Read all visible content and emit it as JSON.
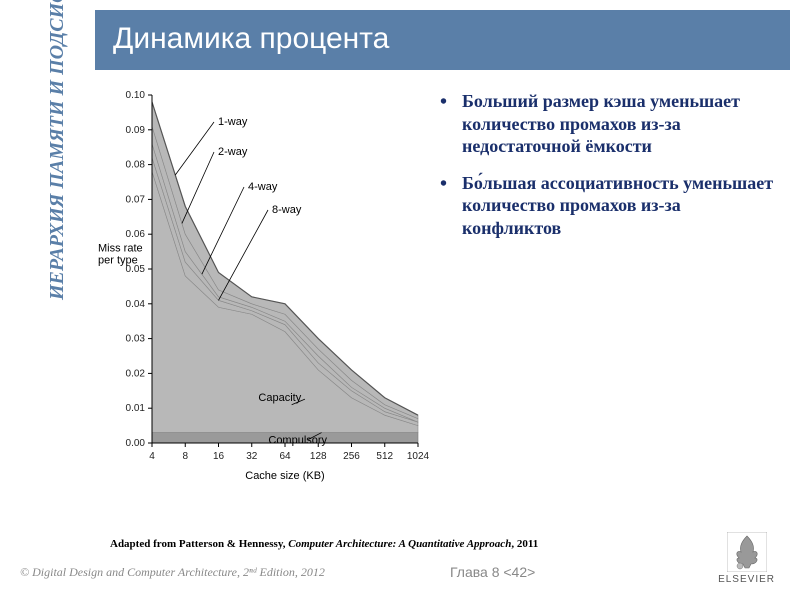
{
  "title": "Динамика процента",
  "sidebar": "ИЕРАРХИЯ ПАМЯТИ И ПОДСИСТЕМА",
  "bullets": [
    "Больший размер кэша уменьшает количество промахов из-за недостаточной ёмкости",
    "Бо́льшая ассоциативность уменьшает количество промахов из-за конфликтов"
  ],
  "citation_prefix": "Adapted from Patterson & Hennessy, ",
  "citation_title": "Computer Architecture: A Quantitative Approach",
  "citation_suffix": ", 2011",
  "footer_left": "© Digital Design and Computer Architecture, 2ⁿᵈ Edition, 2012",
  "footer_center": "Глава 8 <42>",
  "logo_text": "ELSEVIER",
  "chart": {
    "type": "area-line",
    "xlabel": "Cache size (KB)",
    "ylabel": "Miss rate\nper type",
    "xticks": [
      4,
      8,
      16,
      32,
      64,
      128,
      256,
      512,
      1024
    ],
    "yticks": [
      0.0,
      0.01,
      0.02,
      0.03,
      0.04,
      0.05,
      0.06,
      0.07,
      0.08,
      0.09,
      0.1
    ],
    "ylim": [
      0.0,
      0.1
    ],
    "background_color": "#ffffff",
    "fill_color": "#b8b8b8",
    "axis_color": "#000000",
    "font_size_axis": 10,
    "font_size_labels": 11,
    "annotations": [
      "1-way",
      "2-way",
      "4-way",
      "8-way",
      "Capacity",
      "Compulsory"
    ],
    "series": {
      "1-way": [
        0.098,
        0.068,
        0.049,
        0.042,
        0.04,
        0.03,
        0.021,
        0.013,
        0.008
      ],
      "2-way": [
        0.091,
        0.06,
        0.044,
        0.04,
        0.037,
        0.027,
        0.018,
        0.011,
        0.007
      ],
      "4-way": [
        0.086,
        0.055,
        0.042,
        0.039,
        0.035,
        0.025,
        0.016,
        0.01,
        0.006
      ],
      "8-way": [
        0.082,
        0.052,
        0.041,
        0.038,
        0.034,
        0.023,
        0.015,
        0.009,
        0.006
      ],
      "capacity": [
        0.078,
        0.048,
        0.039,
        0.037,
        0.032,
        0.021,
        0.013,
        0.008,
        0.005
      ],
      "compulsory": [
        0.003,
        0.003,
        0.003,
        0.003,
        0.003,
        0.003,
        0.003,
        0.003,
        0.003
      ]
    }
  }
}
